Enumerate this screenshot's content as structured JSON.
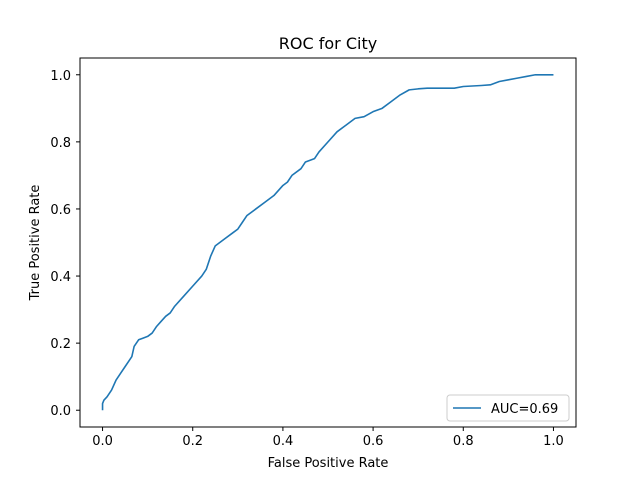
{
  "chart_data": {
    "type": "line",
    "title": "ROC for City",
    "xlabel": "False Positive Rate",
    "ylabel": "True Positive Rate",
    "xlim": [
      -0.05,
      1.05
    ],
    "ylim": [
      -0.05,
      1.05
    ],
    "xticks": [
      0.0,
      0.2,
      0.4,
      0.6,
      0.8,
      1.0
    ],
    "xtick_labels": [
      "0.0",
      "0.2",
      "0.4",
      "0.6",
      "0.8",
      "1.0"
    ],
    "yticks": [
      0.0,
      0.2,
      0.4,
      0.6,
      0.8,
      1.0
    ],
    "ytick_labels": [
      "0.0",
      "0.2",
      "0.4",
      "0.6",
      "0.8",
      "1.0"
    ],
    "grid": false,
    "legend_position": "lower right",
    "series": [
      {
        "name": "AUC=0.69",
        "color": "#1f77b4",
        "x": [
          0.0,
          0.0,
          0.003,
          0.01,
          0.02,
          0.03,
          0.04,
          0.05,
          0.06,
          0.065,
          0.07,
          0.08,
          0.09,
          0.1,
          0.11,
          0.12,
          0.13,
          0.14,
          0.15,
          0.16,
          0.18,
          0.2,
          0.22,
          0.23,
          0.24,
          0.25,
          0.27,
          0.29,
          0.3,
          0.31,
          0.32,
          0.34,
          0.36,
          0.38,
          0.4,
          0.41,
          0.42,
          0.44,
          0.45,
          0.47,
          0.48,
          0.5,
          0.52,
          0.54,
          0.56,
          0.58,
          0.6,
          0.62,
          0.64,
          0.66,
          0.68,
          0.7,
          0.72,
          0.74,
          0.76,
          0.78,
          0.8,
          0.84,
          0.86,
          0.88,
          0.9,
          0.92,
          0.94,
          0.96,
          1.0
        ],
        "y": [
          0.0,
          0.02,
          0.03,
          0.04,
          0.06,
          0.09,
          0.11,
          0.13,
          0.15,
          0.16,
          0.19,
          0.21,
          0.215,
          0.22,
          0.23,
          0.25,
          0.265,
          0.28,
          0.29,
          0.31,
          0.34,
          0.37,
          0.4,
          0.42,
          0.46,
          0.49,
          0.51,
          0.53,
          0.54,
          0.56,
          0.58,
          0.6,
          0.62,
          0.64,
          0.67,
          0.68,
          0.7,
          0.72,
          0.74,
          0.75,
          0.77,
          0.8,
          0.83,
          0.85,
          0.87,
          0.875,
          0.89,
          0.9,
          0.92,
          0.94,
          0.955,
          0.958,
          0.96,
          0.96,
          0.96,
          0.96,
          0.965,
          0.968,
          0.97,
          0.98,
          0.985,
          0.99,
          0.995,
          1.0,
          1.0
        ]
      }
    ]
  }
}
